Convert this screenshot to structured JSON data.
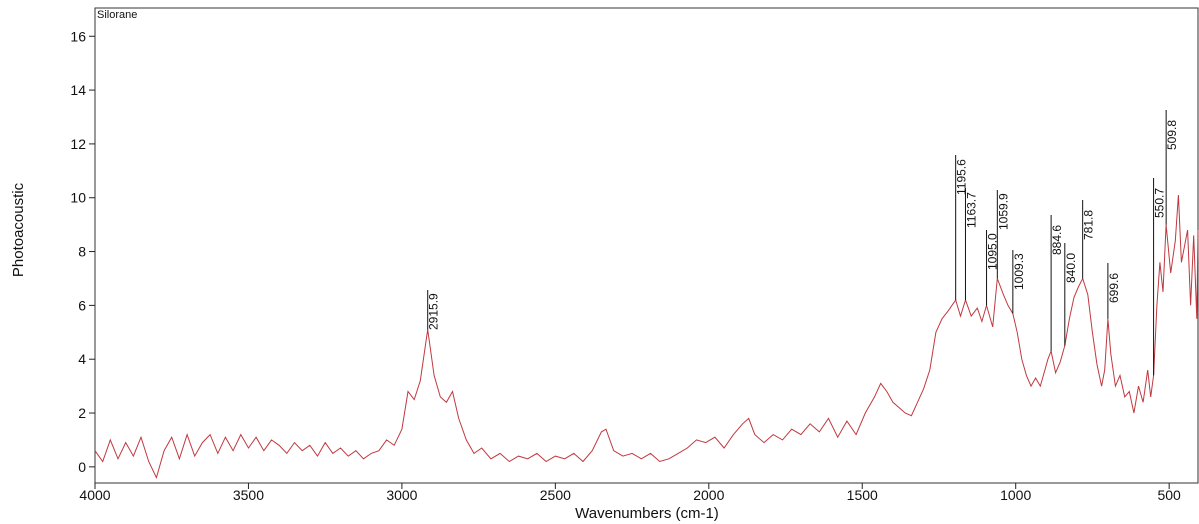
{
  "chart_data": {
    "type": "line",
    "title": "Silorane",
    "xlabel": "Wavenumbers (cm-1)",
    "ylabel": "Photoacoustic",
    "color": "#c0393f",
    "xlim": [
      4000,
      406
    ],
    "ylim": [
      -0.6,
      17.05
    ],
    "xticks": [
      4000,
      3500,
      3000,
      2500,
      2000,
      1500,
      1000,
      500
    ],
    "yticks": [
      0,
      2,
      4,
      6,
      8,
      10,
      12,
      14,
      16
    ],
    "x": [
      4000,
      3975,
      3950,
      3925,
      3900,
      3875,
      3850,
      3825,
      3800,
      3775,
      3750,
      3725,
      3700,
      3675,
      3650,
      3625,
      3600,
      3575,
      3550,
      3525,
      3500,
      3475,
      3450,
      3425,
      3400,
      3375,
      3350,
      3325,
      3300,
      3275,
      3250,
      3225,
      3200,
      3175,
      3150,
      3125,
      3100,
      3075,
      3050,
      3025,
      3000,
      2980,
      2960,
      2940,
      2915.9,
      2895,
      2875,
      2855,
      2835,
      2815,
      2790,
      2765,
      2740,
      2710,
      2680,
      2650,
      2620,
      2590,
      2560,
      2530,
      2500,
      2470,
      2440,
      2410,
      2380,
      2350,
      2335,
      2310,
      2280,
      2250,
      2220,
      2190,
      2160,
      2130,
      2100,
      2070,
      2040,
      2010,
      1980,
      1950,
      1920,
      1890,
      1870,
      1850,
      1820,
      1790,
      1760,
      1730,
      1700,
      1670,
      1640,
      1610,
      1580,
      1550,
      1520,
      1490,
      1460,
      1440,
      1420,
      1400,
      1380,
      1360,
      1340,
      1320,
      1300,
      1280,
      1260,
      1240,
      1220,
      1195.6,
      1180,
      1163.7,
      1145,
      1125,
      1110,
      1095,
      1075,
      1059.9,
      1040,
      1025,
      1009.3,
      995,
      980,
      965,
      950,
      935,
      920,
      905,
      895,
      884.6,
      870,
      855,
      840,
      825,
      810,
      795,
      781.8,
      765,
      750,
      735,
      720,
      710,
      699.6,
      690,
      675,
      660,
      645,
      630,
      615,
      600,
      585,
      570,
      560,
      550.7,
      540,
      530,
      520,
      509.8,
      495,
      480,
      470,
      460,
      450,
      440,
      430,
      420,
      410,
      406
    ],
    "values": [
      0.6,
      0.2,
      1.0,
      0.3,
      0.9,
      0.4,
      1.1,
      0.2,
      -0.4,
      0.6,
      1.1,
      0.3,
      1.2,
      0.4,
      0.9,
      1.2,
      0.5,
      1.1,
      0.6,
      1.2,
      0.7,
      1.1,
      0.6,
      1.0,
      0.8,
      0.5,
      0.9,
      0.6,
      0.8,
      0.4,
      0.9,
      0.5,
      0.7,
      0.4,
      0.6,
      0.3,
      0.5,
      0.6,
      1.0,
      0.8,
      1.4,
      2.8,
      2.5,
      3.2,
      5.1,
      3.4,
      2.6,
      2.4,
      2.8,
      1.8,
      1.0,
      0.5,
      0.7,
      0.3,
      0.5,
      0.2,
      0.4,
      0.3,
      0.5,
      0.2,
      0.4,
      0.3,
      0.5,
      0.2,
      0.6,
      1.3,
      1.4,
      0.6,
      0.4,
      0.5,
      0.3,
      0.5,
      0.2,
      0.3,
      0.5,
      0.7,
      1.0,
      0.9,
      1.1,
      0.7,
      1.2,
      1.6,
      1.8,
      1.2,
      0.9,
      1.2,
      1.0,
      1.4,
      1.2,
      1.6,
      1.3,
      1.8,
      1.1,
      1.7,
      1.2,
      2.0,
      2.6,
      3.1,
      2.8,
      2.4,
      2.2,
      2.0,
      1.9,
      2.4,
      2.9,
      3.6,
      5.0,
      5.5,
      5.8,
      6.2,
      5.6,
      6.2,
      5.6,
      5.9,
      5.4,
      6.0,
      5.2,
      7.0,
      6.4,
      6.0,
      5.7,
      5.0,
      4.0,
      3.4,
      3.0,
      3.3,
      3.0,
      3.6,
      4.0,
      4.3,
      3.5,
      3.9,
      4.5,
      5.5,
      6.3,
      6.7,
      7.0,
      6.4,
      5.0,
      3.8,
      3.0,
      3.6,
      5.5,
      4.2,
      3.0,
      3.4,
      2.6,
      2.8,
      2.0,
      3.0,
      2.4,
      3.6,
      2.6,
      3.4,
      6.0,
      7.6,
      6.5,
      9.0,
      7.2,
      8.4,
      10.1,
      7.6,
      8.2,
      8.8,
      6.0,
      8.6,
      5.5,
      8.8
    ],
    "peaks": [
      {
        "x": 2915.9,
        "y": 5.1
      },
      {
        "x": 1195.6,
        "y": 6.2
      },
      {
        "x": 1163.7,
        "y": 6.2
      },
      {
        "x": 1095.0,
        "label": "1095.0",
        "y": 6.0
      },
      {
        "x": 1059.9,
        "y": 7.0
      },
      {
        "x": 1009.3,
        "y": 5.7
      },
      {
        "x": 884.6,
        "y": 4.3
      },
      {
        "x": 840.0,
        "label": "840.0",
        "y": 4.5
      },
      {
        "x": 781.8,
        "y": 7.0
      },
      {
        "x": 699.6,
        "y": 5.5
      },
      {
        "x": 550.7,
        "y": 3.4
      },
      {
        "x": 509.8,
        "y": 9.0
      }
    ]
  }
}
